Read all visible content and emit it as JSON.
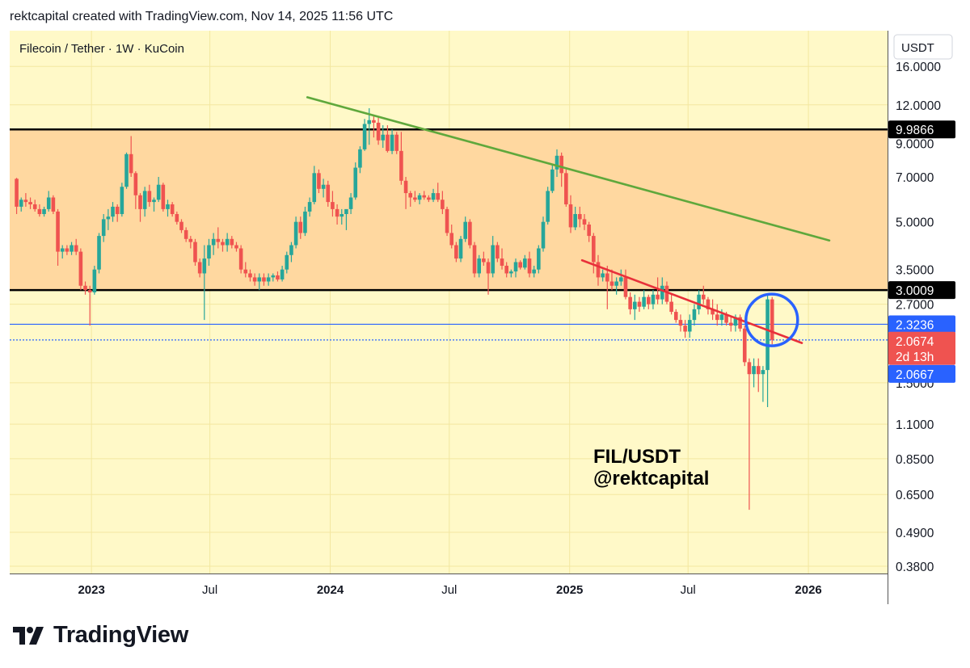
{
  "header": {
    "text": "rektcapital created with TradingView.com, Nov 14, 2025 11:56 UTC"
  },
  "footer": {
    "brand": "TradingView"
  },
  "chart_data": {
    "type": "candlestick",
    "title": "Filecoin / Tether · 1W · KuCoin",
    "annotation_lines": [
      "FIL/USDT",
      "@rektcapital"
    ],
    "currency_label": "USDT",
    "y_scale": "log",
    "y_ticks": [
      16,
      12,
      9,
      7,
      5,
      3.5,
      2.7,
      1.5,
      1.1,
      0.85,
      0.65,
      0.49,
      0.38
    ],
    "y_tick_labels": [
      "16.0000",
      "12.0000",
      "9.0000",
      "7.0000",
      "5.0000",
      "3.5000",
      "2.7000",
      "1.5000",
      "1.1000",
      "0.8500",
      "0.6500",
      "0.4900",
      "0.3800"
    ],
    "x_labels": [
      {
        "label": "2023",
        "date": "2023-01-01",
        "bold": true
      },
      {
        "label": "Jul",
        "date": "2023-07-01",
        "bold": false
      },
      {
        "label": "2024",
        "date": "2024-01-01",
        "bold": true
      },
      {
        "label": "Jul",
        "date": "2024-07-01",
        "bold": false
      },
      {
        "label": "2025",
        "date": "2025-01-01",
        "bold": true
      },
      {
        "label": "Jul",
        "date": "2025-07-01",
        "bold": false
      },
      {
        "label": "2026",
        "date": "2026-01-01",
        "bold": true
      }
    ],
    "range": {
      "low": 3.0009,
      "high": 9.9866,
      "fill": "#ffd8a0"
    },
    "levels": [
      {
        "value": 9.9866,
        "label": "9.9866",
        "color": "#000000",
        "style": "solid"
      },
      {
        "value": 3.0009,
        "label": "3.0009",
        "color": "#000000",
        "style": "solid"
      },
      {
        "value": 2.3236,
        "label": "2.3236",
        "color": "#2962ff",
        "style": "solid"
      },
      {
        "value": 2.0667,
        "label": "2.0667",
        "color": "#2962ff",
        "style": "dotted"
      }
    ],
    "price_tag": {
      "value": 2.0674,
      "label": "2.0674",
      "countdown": "2d 13h",
      "color": "#ef5350"
    },
    "trendlines": [
      {
        "name": "green-downtrend",
        "color": "#5fa83c",
        "from": {
          "date": "2023-11-27",
          "price": 12.7
        },
        "to": {
          "date": "2026-02-02",
          "price": 4.35
        }
      },
      {
        "name": "red-downtrend",
        "color": "#e8303a",
        "from": {
          "date": "2025-01-20",
          "price": 3.75
        },
        "to": {
          "date": "2025-12-22",
          "price": 2.02
        }
      }
    ],
    "circle": {
      "date": "2025-11-06",
      "price": 2.4,
      "color": "#2962ff"
    },
    "colors": {
      "up": "#26a69a",
      "down": "#ef5350",
      "bg": "#fff9c8",
      "grid": "#f3e7a0"
    },
    "candles": [
      [
        "2022-09-05",
        6.9,
        6.95,
        5.3,
        5.6
      ],
      [
        "2022-09-12",
        5.6,
        6.0,
        5.4,
        5.9
      ],
      [
        "2022-09-19",
        5.9,
        6.2,
        5.6,
        5.8
      ],
      [
        "2022-09-26",
        5.8,
        6.0,
        5.5,
        5.7
      ],
      [
        "2022-10-03",
        5.7,
        5.9,
        5.4,
        5.5
      ],
      [
        "2022-10-10",
        5.5,
        5.7,
        5.2,
        5.3
      ],
      [
        "2022-10-17",
        5.3,
        5.6,
        5.2,
        5.5
      ],
      [
        "2022-10-24",
        5.5,
        6.3,
        5.4,
        6.0
      ],
      [
        "2022-10-31",
        6.0,
        6.1,
        5.3,
        5.4
      ],
      [
        "2022-11-07",
        5.4,
        5.5,
        3.6,
        4.0
      ],
      [
        "2022-11-14",
        4.0,
        4.2,
        3.8,
        4.1
      ],
      [
        "2022-11-21",
        4.1,
        4.2,
        3.9,
        4.0
      ],
      [
        "2022-11-28",
        4.0,
        4.3,
        3.9,
        4.2
      ],
      [
        "2022-12-05",
        4.2,
        4.4,
        3.9,
        4.0
      ],
      [
        "2022-12-12",
        4.0,
        4.1,
        3.0,
        3.1
      ],
      [
        "2022-12-19",
        3.1,
        3.2,
        2.9,
        3.0
      ],
      [
        "2022-12-26",
        3.0,
        3.1,
        2.3,
        2.95
      ],
      [
        "2023-01-02",
        2.95,
        3.6,
        2.9,
        3.5
      ],
      [
        "2023-01-09",
        3.5,
        4.6,
        3.4,
        4.5
      ],
      [
        "2023-01-16",
        4.5,
        5.3,
        4.3,
        5.1
      ],
      [
        "2023-01-23",
        5.1,
        5.5,
        4.7,
        5.2
      ],
      [
        "2023-01-30",
        5.2,
        5.8,
        5.0,
        5.6
      ],
      [
        "2023-02-06",
        5.6,
        5.7,
        5.0,
        5.3
      ],
      [
        "2023-02-13",
        5.3,
        6.7,
        5.2,
        6.5
      ],
      [
        "2023-02-20",
        6.5,
        8.4,
        6.4,
        8.3
      ],
      [
        "2023-02-27",
        8.3,
        9.5,
        7.0,
        7.2
      ],
      [
        "2023-03-06",
        7.2,
        7.3,
        5.5,
        6.1
      ],
      [
        "2023-03-13",
        6.1,
        6.2,
        5.0,
        5.5
      ],
      [
        "2023-03-20",
        5.5,
        6.5,
        5.2,
        6.3
      ],
      [
        "2023-03-27",
        6.3,
        6.6,
        5.6,
        5.8
      ],
      [
        "2023-04-03",
        5.8,
        6.0,
        5.4,
        5.9
      ],
      [
        "2023-04-10",
        5.9,
        7.0,
        5.8,
        6.6
      ],
      [
        "2023-04-17",
        6.6,
        6.7,
        5.4,
        5.5
      ],
      [
        "2023-04-24",
        5.5,
        5.9,
        5.2,
        5.7
      ],
      [
        "2023-05-01",
        5.7,
        5.8,
        5.2,
        5.3
      ],
      [
        "2023-05-08",
        5.3,
        5.4,
        4.9,
        5.0
      ],
      [
        "2023-05-15",
        5.0,
        5.1,
        4.6,
        4.7
      ],
      [
        "2023-05-22",
        4.7,
        4.8,
        4.3,
        4.4
      ],
      [
        "2023-05-29",
        4.4,
        4.5,
        4.1,
        4.3
      ],
      [
        "2023-06-05",
        4.3,
        4.4,
        3.6,
        3.7
      ],
      [
        "2023-06-12",
        3.7,
        3.8,
        3.3,
        3.4
      ],
      [
        "2023-06-19",
        3.4,
        4.2,
        2.4,
        3.8
      ],
      [
        "2023-06-26",
        3.8,
        4.4,
        3.6,
        4.2
      ],
      [
        "2023-07-03",
        4.2,
        4.6,
        3.9,
        4.4
      ],
      [
        "2023-07-10",
        4.4,
        4.8,
        4.1,
        4.3
      ],
      [
        "2023-07-17",
        4.3,
        4.4,
        4.0,
        4.2
      ],
      [
        "2023-07-24",
        4.2,
        4.6,
        4.0,
        4.4
      ],
      [
        "2023-07-31",
        4.4,
        4.5,
        4.1,
        4.2
      ],
      [
        "2023-08-07",
        4.2,
        4.3,
        4.0,
        4.1
      ],
      [
        "2023-08-14",
        4.1,
        4.2,
        3.4,
        3.5
      ],
      [
        "2023-08-21",
        3.5,
        3.7,
        3.3,
        3.4
      ],
      [
        "2023-08-28",
        3.4,
        3.5,
        3.2,
        3.3
      ],
      [
        "2023-09-04",
        3.3,
        3.4,
        3.1,
        3.2
      ],
      [
        "2023-09-11",
        3.2,
        3.4,
        3.0,
        3.3
      ],
      [
        "2023-09-18",
        3.3,
        3.4,
        3.1,
        3.2
      ],
      [
        "2023-09-25",
        3.2,
        3.4,
        3.1,
        3.3
      ],
      [
        "2023-10-02",
        3.3,
        3.4,
        3.2,
        3.35
      ],
      [
        "2023-10-09",
        3.35,
        3.45,
        3.2,
        3.25
      ],
      [
        "2023-10-16",
        3.25,
        3.6,
        3.2,
        3.5
      ],
      [
        "2023-10-23",
        3.5,
        4.0,
        3.4,
        3.9
      ],
      [
        "2023-10-30",
        3.9,
        4.3,
        3.7,
        4.2
      ],
      [
        "2023-11-06",
        4.2,
        5.2,
        4.1,
        5.0
      ],
      [
        "2023-11-13",
        5.0,
        5.2,
        4.4,
        4.6
      ],
      [
        "2023-11-20",
        4.6,
        5.6,
        4.5,
        5.4
      ],
      [
        "2023-11-27",
        5.4,
        6.0,
        5.2,
        5.8
      ],
      [
        "2023-12-04",
        5.8,
        7.6,
        5.7,
        7.2
      ],
      [
        "2023-12-11",
        7.2,
        7.4,
        6.2,
        6.4
      ],
      [
        "2023-12-18",
        6.4,
        6.9,
        6.0,
        6.6
      ],
      [
        "2023-12-25",
        6.6,
        6.8,
        5.6,
        5.8
      ],
      [
        "2024-01-01",
        5.8,
        6.3,
        5.2,
        5.5
      ],
      [
        "2024-01-08",
        5.5,
        5.7,
        4.9,
        5.2
      ],
      [
        "2024-01-15",
        5.2,
        5.5,
        4.9,
        5.3
      ],
      [
        "2024-01-22",
        5.3,
        5.4,
        4.7,
        5.5
      ],
      [
        "2024-01-29",
        5.5,
        6.2,
        5.3,
        6.0
      ],
      [
        "2024-02-05",
        6.0,
        7.8,
        5.9,
        7.5
      ],
      [
        "2024-02-12",
        7.5,
        8.8,
        7.2,
        8.6
      ],
      [
        "2024-02-19",
        8.6,
        10.8,
        8.5,
        10.4
      ],
      [
        "2024-02-26",
        10.4,
        11.7,
        8.9,
        10.7
      ],
      [
        "2024-03-04",
        10.7,
        11.1,
        9.4,
        10.5
      ],
      [
        "2024-03-11",
        10.5,
        10.9,
        8.9,
        9.2
      ],
      [
        "2024-03-18",
        9.2,
        10.3,
        8.7,
        9.6
      ],
      [
        "2024-03-25",
        9.6,
        10.3,
        8.4,
        8.5
      ],
      [
        "2024-04-01",
        8.5,
        10.0,
        8.3,
        9.6
      ],
      [
        "2024-04-08",
        9.6,
        9.8,
        8.3,
        8.5
      ],
      [
        "2024-04-15",
        8.5,
        9.8,
        6.6,
        6.8
      ],
      [
        "2024-04-22",
        6.8,
        7.0,
        5.5,
        6.2
      ],
      [
        "2024-04-29",
        6.2,
        6.3,
        5.6,
        6.0
      ],
      [
        "2024-05-06",
        6.0,
        6.3,
        5.8,
        5.9
      ],
      [
        "2024-05-13",
        5.9,
        6.2,
        5.7,
        6.1
      ],
      [
        "2024-05-20",
        6.1,
        6.3,
        5.9,
        6.0
      ],
      [
        "2024-05-27",
        6.0,
        6.1,
        5.8,
        5.9
      ],
      [
        "2024-06-03",
        5.9,
        6.4,
        5.8,
        6.2
      ],
      [
        "2024-06-10",
        6.2,
        6.7,
        5.8,
        5.9
      ],
      [
        "2024-06-17",
        5.9,
        6.3,
        5.3,
        5.5
      ],
      [
        "2024-06-24",
        5.5,
        5.6,
        4.5,
        4.6
      ],
      [
        "2024-07-01",
        4.6,
        4.9,
        4.1,
        4.2
      ],
      [
        "2024-07-08",
        4.2,
        4.3,
        3.7,
        3.8
      ],
      [
        "2024-07-15",
        3.8,
        4.5,
        3.7,
        4.4
      ],
      [
        "2024-07-22",
        4.4,
        5.2,
        4.3,
        5.0
      ],
      [
        "2024-07-29",
        5.0,
        5.1,
        4.1,
        4.2
      ],
      [
        "2024-08-05",
        4.2,
        4.3,
        3.3,
        3.4
      ],
      [
        "2024-08-12",
        3.4,
        3.9,
        3.3,
        3.8
      ],
      [
        "2024-08-19",
        3.8,
        4.0,
        3.6,
        3.7
      ],
      [
        "2024-08-26",
        3.7,
        3.8,
        2.9,
        3.4
      ],
      [
        "2024-09-02",
        3.4,
        4.5,
        3.3,
        4.2
      ],
      [
        "2024-09-09",
        4.2,
        4.3,
        3.7,
        3.8
      ],
      [
        "2024-09-16",
        3.8,
        4.1,
        3.5,
        3.6
      ],
      [
        "2024-09-23",
        3.6,
        3.7,
        3.3,
        3.4
      ],
      [
        "2024-09-30",
        3.4,
        3.5,
        3.3,
        3.45
      ],
      [
        "2024-10-07",
        3.45,
        3.8,
        3.3,
        3.7
      ],
      [
        "2024-10-14",
        3.7,
        3.75,
        3.5,
        3.55
      ],
      [
        "2024-10-21",
        3.55,
        3.9,
        3.5,
        3.8
      ],
      [
        "2024-10-28",
        3.8,
        4.0,
        3.3,
        3.4
      ],
      [
        "2024-11-04",
        3.4,
        3.6,
        3.3,
        3.5
      ],
      [
        "2024-11-11",
        3.5,
        4.2,
        3.4,
        4.1
      ],
      [
        "2024-11-18",
        4.1,
        5.2,
        4.0,
        5.0
      ],
      [
        "2024-11-25",
        5.0,
        6.5,
        4.9,
        6.3
      ],
      [
        "2024-12-02",
        6.3,
        7.7,
        6.2,
        7.4
      ],
      [
        "2024-12-09",
        7.4,
        8.6,
        7.0,
        8.2
      ],
      [
        "2024-12-16",
        8.2,
        8.4,
        6.5,
        7.2
      ],
      [
        "2024-12-23",
        7.2,
        7.4,
        5.6,
        5.7
      ],
      [
        "2024-12-30",
        5.7,
        6.1,
        4.6,
        4.8
      ],
      [
        "2025-01-06",
        4.8,
        5.6,
        4.7,
        5.3
      ],
      [
        "2025-01-13",
        5.3,
        5.6,
        4.8,
        5.1
      ],
      [
        "2025-01-20",
        5.1,
        5.3,
        4.7,
        4.9
      ],
      [
        "2025-01-27",
        4.9,
        5.0,
        4.3,
        4.5
      ],
      [
        "2025-02-03",
        4.5,
        4.6,
        3.4,
        3.7
      ],
      [
        "2025-02-10",
        3.7,
        3.9,
        3.1,
        3.3
      ],
      [
        "2025-02-17",
        3.3,
        3.5,
        3.2,
        3.4
      ],
      [
        "2025-02-24",
        3.4,
        3.6,
        2.6,
        3.2
      ],
      [
        "2025-03-03",
        3.2,
        3.5,
        3.0,
        3.1
      ],
      [
        "2025-03-10",
        3.1,
        3.3,
        2.9,
        3.2
      ],
      [
        "2025-03-17",
        3.2,
        3.5,
        3.1,
        3.3
      ],
      [
        "2025-03-24",
        3.3,
        3.5,
        2.8,
        2.85
      ],
      [
        "2025-03-31",
        2.85,
        2.95,
        2.5,
        2.6
      ],
      [
        "2025-04-07",
        2.6,
        2.9,
        2.4,
        2.75
      ],
      [
        "2025-04-14",
        2.75,
        2.85,
        2.55,
        2.65
      ],
      [
        "2025-04-21",
        2.65,
        3.0,
        2.6,
        2.85
      ],
      [
        "2025-04-28",
        2.85,
        2.9,
        2.6,
        2.7
      ],
      [
        "2025-05-05",
        2.7,
        3.0,
        2.6,
        2.9
      ],
      [
        "2025-05-12",
        2.9,
        3.3,
        2.7,
        2.8
      ],
      [
        "2025-05-19",
        2.8,
        3.3,
        2.7,
        3.1
      ],
      [
        "2025-05-26",
        3.1,
        3.2,
        2.7,
        2.75
      ],
      [
        "2025-06-02",
        2.75,
        2.9,
        2.5,
        2.55
      ],
      [
        "2025-06-09",
        2.55,
        2.6,
        2.35,
        2.4
      ],
      [
        "2025-06-16",
        2.4,
        2.5,
        2.2,
        2.3
      ],
      [
        "2025-06-23",
        2.3,
        2.4,
        2.1,
        2.2
      ],
      [
        "2025-06-30",
        2.2,
        2.5,
        2.1,
        2.4
      ],
      [
        "2025-07-07",
        2.4,
        2.7,
        2.3,
        2.6
      ],
      [
        "2025-07-14",
        2.6,
        3.0,
        2.5,
        2.9
      ],
      [
        "2025-07-21",
        2.9,
        3.1,
        2.7,
        2.8
      ],
      [
        "2025-07-28",
        2.8,
        2.85,
        2.5,
        2.6
      ],
      [
        "2025-08-04",
        2.6,
        2.8,
        2.4,
        2.5
      ],
      [
        "2025-08-11",
        2.5,
        2.7,
        2.3,
        2.4
      ],
      [
        "2025-08-18",
        2.4,
        2.6,
        2.3,
        2.5
      ],
      [
        "2025-08-25",
        2.5,
        2.55,
        2.3,
        2.35
      ],
      [
        "2025-09-01",
        2.35,
        2.45,
        2.2,
        2.3
      ],
      [
        "2025-09-08",
        2.3,
        2.5,
        2.2,
        2.45
      ],
      [
        "2025-09-15",
        2.45,
        2.5,
        2.2,
        2.25
      ],
      [
        "2025-09-22",
        2.25,
        2.3,
        1.7,
        1.75
      ],
      [
        "2025-09-29",
        1.75,
        1.8,
        0.58,
        1.6
      ],
      [
        "2025-10-06",
        1.6,
        1.8,
        1.45,
        1.7
      ],
      [
        "2025-10-13",
        1.7,
        1.8,
        1.4,
        1.6
      ],
      [
        "2025-10-20",
        1.6,
        1.7,
        1.3,
        1.65
      ],
      [
        "2025-10-27",
        1.65,
        2.9,
        1.25,
        2.8
      ],
      [
        "2025-11-03",
        2.8,
        2.85,
        2.0,
        2.0674
      ]
    ]
  }
}
